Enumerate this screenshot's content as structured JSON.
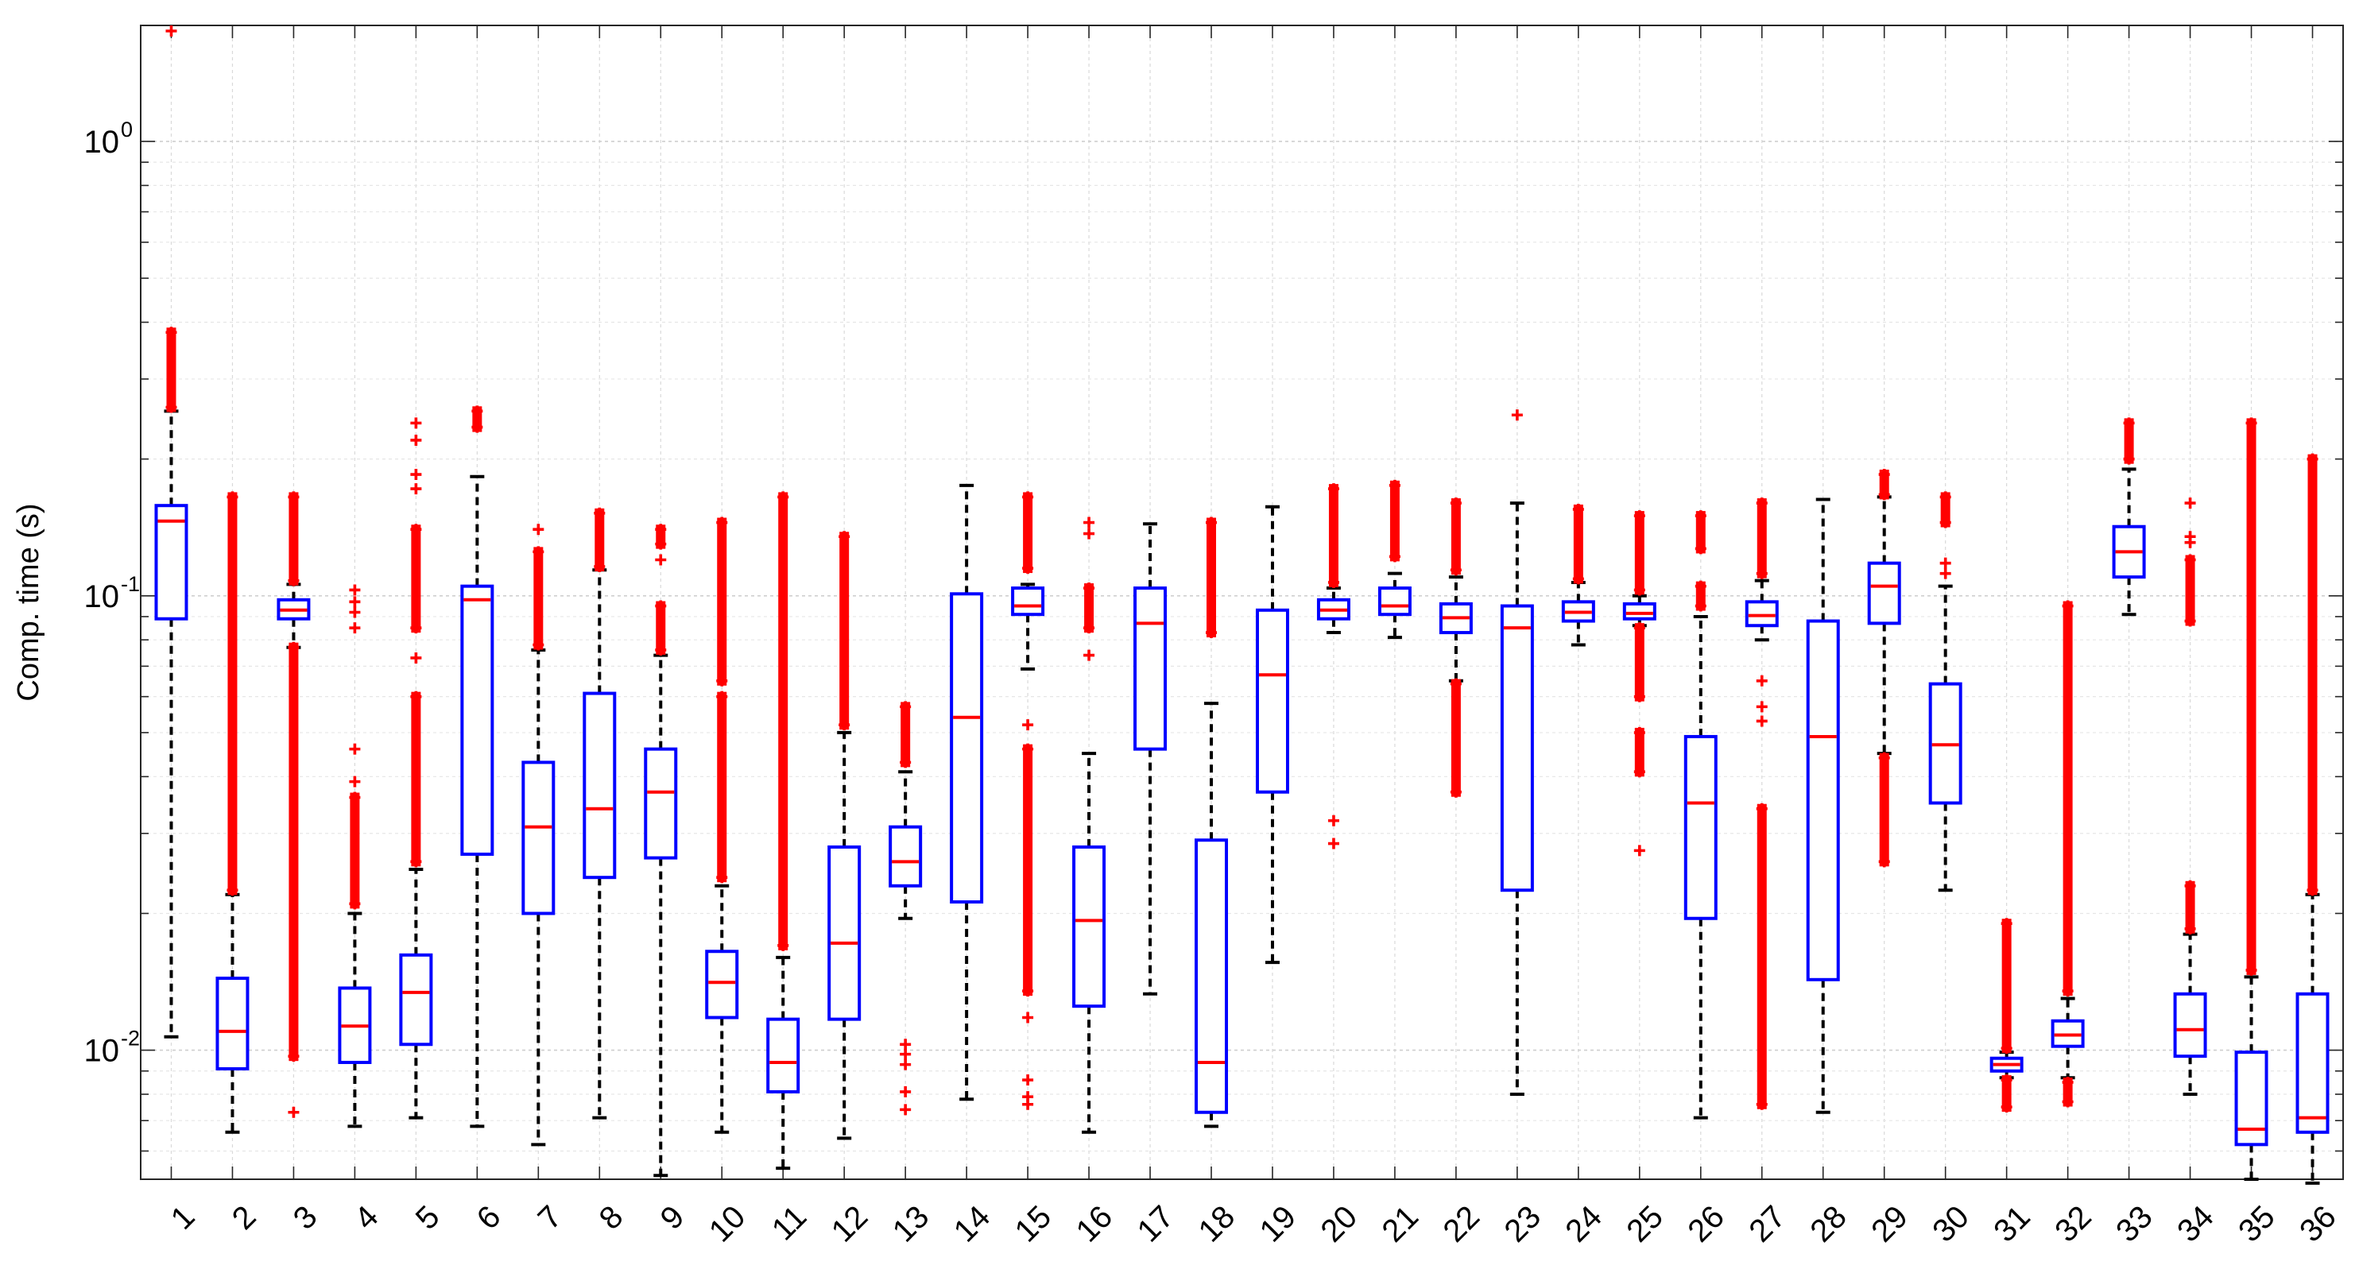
{
  "chart_data": {
    "type": "boxplot",
    "title": "",
    "xlabel": "",
    "ylabel": "Comp. time (s)",
    "yscale": "log",
    "ylim": [
      0.0052,
      1.8
    ],
    "grid": true,
    "legend": "none",
    "colors": {
      "box": "#0000ff",
      "median": "#ff0000",
      "whisker": "#000000",
      "outlier": "#ff0000",
      "grid": "#d9d9d9"
    },
    "ytick_labels": [
      {
        "base": "10",
        "exp": "0",
        "value": 1
      },
      {
        "base": "10",
        "exp": "-1",
        "value": 0.1
      },
      {
        "base": "10",
        "exp": "-2",
        "value": 0.01
      }
    ],
    "categories": [
      "1",
      "2",
      "3",
      "4",
      "5",
      "6",
      "7",
      "8",
      "9",
      "10",
      "11",
      "12",
      "13",
      "14",
      "15",
      "16",
      "17",
      "18",
      "19",
      "20",
      "21",
      "22",
      "23",
      "24",
      "25",
      "26",
      "27",
      "28",
      "29",
      "30",
      "31",
      "32",
      "33",
      "34",
      "35",
      "36"
    ],
    "boxes": [
      {
        "q1": 0.089,
        "median": 0.146,
        "q3": 0.158,
        "whisker_low": 0.0107,
        "whisker_high": 0.255,
        "outlier_ranges": [
          [
            0.26,
            0.38
          ]
        ],
        "outliers": [
          1.75
        ]
      },
      {
        "q1": 0.0091,
        "median": 0.011,
        "q3": 0.0144,
        "whisker_low": 0.0066,
        "whisker_high": 0.022,
        "outlier_ranges": [
          [
            0.0225,
            0.165
          ]
        ],
        "outliers": []
      },
      {
        "q1": 0.089,
        "median": 0.093,
        "q3": 0.098,
        "whisker_low": 0.077,
        "whisker_high": 0.106,
        "outlier_ranges": [
          [
            0.0097,
            0.077
          ],
          [
            0.108,
            0.165
          ]
        ],
        "outliers": [
          0.0073
        ]
      },
      {
        "q1": 0.0094,
        "median": 0.0113,
        "q3": 0.0137,
        "whisker_low": 0.0068,
        "whisker_high": 0.02,
        "outlier_ranges": [
          [
            0.021,
            0.036
          ]
        ],
        "outliers": [
          0.039,
          0.046,
          0.085,
          0.092,
          0.097,
          0.103
        ]
      },
      {
        "q1": 0.0103,
        "median": 0.0134,
        "q3": 0.0162,
        "whisker_low": 0.0071,
        "whisker_high": 0.025,
        "outlier_ranges": [
          [
            0.026,
            0.06
          ],
          [
            0.085,
            0.14
          ]
        ],
        "outliers": [
          0.073,
          0.172,
          0.185,
          0.22,
          0.24
        ]
      },
      {
        "q1": 0.027,
        "median": 0.098,
        "q3": 0.105,
        "whisker_low": 0.0068,
        "whisker_high": 0.183,
        "outlier_ranges": [
          [
            0.235,
            0.255
          ]
        ],
        "outliers": []
      },
      {
        "q1": 0.02,
        "median": 0.031,
        "q3": 0.043,
        "whisker_low": 0.0062,
        "whisker_high": 0.076,
        "outlier_ranges": [
          [
            0.078,
            0.125
          ]
        ],
        "outliers": [
          0.14
        ]
      },
      {
        "q1": 0.024,
        "median": 0.034,
        "q3": 0.061,
        "whisker_low": 0.0071,
        "whisker_high": 0.114,
        "outlier_ranges": [
          [
            0.116,
            0.152
          ]
        ],
        "outliers": []
      },
      {
        "q1": 0.0265,
        "median": 0.037,
        "q3": 0.046,
        "whisker_low": 0.0053,
        "whisker_high": 0.074,
        "outlier_ranges": [
          [
            0.076,
            0.095
          ],
          [
            0.13,
            0.14
          ]
        ],
        "outliers": [
          0.12
        ]
      },
      {
        "q1": 0.0118,
        "median": 0.0141,
        "q3": 0.0165,
        "whisker_low": 0.0066,
        "whisker_high": 0.023,
        "outlier_ranges": [
          [
            0.024,
            0.06
          ],
          [
            0.065,
            0.145
          ]
        ],
        "outliers": []
      },
      {
        "q1": 0.0081,
        "median": 0.0094,
        "q3": 0.0117,
        "whisker_low": 0.0055,
        "whisker_high": 0.016,
        "outlier_ranges": [
          [
            0.017,
            0.165
          ]
        ],
        "outliers": []
      },
      {
        "q1": 0.0117,
        "median": 0.0172,
        "q3": 0.028,
        "whisker_low": 0.0064,
        "whisker_high": 0.05,
        "outlier_ranges": [
          [
            0.052,
            0.135
          ]
        ],
        "outliers": []
      },
      {
        "q1": 0.023,
        "median": 0.026,
        "q3": 0.031,
        "whisker_low": 0.0195,
        "whisker_high": 0.041,
        "outlier_ranges": [
          [
            0.043,
            0.057
          ]
        ],
        "outliers": [
          0.0074,
          0.0081,
          0.0093,
          0.0098,
          0.0103
        ]
      },
      {
        "q1": 0.0212,
        "median": 0.054,
        "q3": 0.101,
        "whisker_low": 0.0078,
        "whisker_high": 0.175,
        "outlier_ranges": [],
        "outliers": []
      },
      {
        "q1": 0.091,
        "median": 0.095,
        "q3": 0.104,
        "whisker_low": 0.069,
        "whisker_high": 0.106,
        "outlier_ranges": [
          [
            0.0135,
            0.046
          ],
          [
            0.115,
            0.165
          ]
        ],
        "outliers": [
          0.0076,
          0.0079,
          0.0086,
          0.0118,
          0.052
        ]
      },
      {
        "q1": 0.0125,
        "median": 0.0193,
        "q3": 0.028,
        "whisker_low": 0.0066,
        "whisker_high": 0.045,
        "outlier_ranges": [
          [
            0.085,
            0.104
          ]
        ],
        "outliers": [
          0.074,
          0.137,
          0.145
        ]
      },
      {
        "q1": 0.046,
        "median": 0.087,
        "q3": 0.104,
        "whisker_low": 0.0133,
        "whisker_high": 0.144,
        "outlier_ranges": [],
        "outliers": []
      },
      {
        "q1": 0.0073,
        "median": 0.0094,
        "q3": 0.029,
        "whisker_low": 0.0068,
        "whisker_high": 0.058,
        "outlier_ranges": [
          [
            0.083,
            0.145
          ]
        ],
        "outliers": []
      },
      {
        "q1": 0.037,
        "median": 0.067,
        "q3": 0.093,
        "whisker_low": 0.0156,
        "whisker_high": 0.157,
        "outlier_ranges": [],
        "outliers": []
      },
      {
        "q1": 0.089,
        "median": 0.093,
        "q3": 0.098,
        "whisker_low": 0.083,
        "whisker_high": 0.104,
        "outlier_ranges": [
          [
            0.107,
            0.172
          ]
        ],
        "outliers": [
          0.0285,
          0.032
        ]
      },
      {
        "q1": 0.091,
        "median": 0.095,
        "q3": 0.104,
        "whisker_low": 0.081,
        "whisker_high": 0.112,
        "outlier_ranges": [
          [
            0.122,
            0.175
          ]
        ],
        "outliers": []
      },
      {
        "q1": 0.083,
        "median": 0.0895,
        "q3": 0.096,
        "whisker_low": 0.065,
        "whisker_high": 0.11,
        "outlier_ranges": [
          [
            0.037,
            0.064
          ],
          [
            0.114,
            0.16
          ]
        ],
        "outliers": []
      },
      {
        "q1": 0.0225,
        "median": 0.085,
        "q3": 0.095,
        "whisker_low": 0.008,
        "whisker_high": 0.16,
        "outlier_ranges": [],
        "outliers": [
          0.25
        ]
      },
      {
        "q1": 0.088,
        "median": 0.092,
        "q3": 0.097,
        "whisker_low": 0.078,
        "whisker_high": 0.107,
        "outlier_ranges": [
          [
            0.109,
            0.155
          ]
        ],
        "outliers": []
      },
      {
        "q1": 0.089,
        "median": 0.0915,
        "q3": 0.096,
        "whisker_low": 0.086,
        "whisker_high": 0.1,
        "outlier_ranges": [
          [
            0.041,
            0.05
          ],
          [
            0.06,
            0.085
          ],
          [
            0.103,
            0.15
          ]
        ],
        "outliers": [
          0.0275
        ]
      },
      {
        "q1": 0.0195,
        "median": 0.035,
        "q3": 0.049,
        "whisker_low": 0.0071,
        "whisker_high": 0.09,
        "outlier_ranges": [
          [
            0.095,
            0.105
          ],
          [
            0.127,
            0.15
          ]
        ],
        "outliers": []
      },
      {
        "q1": 0.086,
        "median": 0.0905,
        "q3": 0.097,
        "whisker_low": 0.08,
        "whisker_high": 0.108,
        "outlier_ranges": [
          [
            0.0076,
            0.034
          ],
          [
            0.112,
            0.16
          ]
        ],
        "outliers": [
          0.053,
          0.057,
          0.065
        ]
      },
      {
        "q1": 0.0143,
        "median": 0.049,
        "q3": 0.088,
        "whisker_low": 0.0073,
        "whisker_high": 0.163,
        "outlier_ranges": [],
        "outliers": []
      },
      {
        "q1": 0.087,
        "median": 0.105,
        "q3": 0.118,
        "whisker_low": 0.045,
        "whisker_high": 0.165,
        "outlier_ranges": [
          [
            0.026,
            0.044
          ],
          [
            0.167,
            0.185
          ]
        ],
        "outliers": []
      },
      {
        "q1": 0.035,
        "median": 0.047,
        "q3": 0.064,
        "whisker_low": 0.0225,
        "whisker_high": 0.105,
        "outlier_ranges": [
          [
            0.145,
            0.165
          ]
        ],
        "outliers": [
          0.112,
          0.118
        ]
      },
      {
        "q1": 0.009,
        "median": 0.0093,
        "q3": 0.0096,
        "whisker_low": 0.0087,
        "whisker_high": 0.0099,
        "outlier_ranges": [
          [
            0.0075,
            0.0086
          ],
          [
            0.0101,
            0.019
          ]
        ],
        "outliers": []
      },
      {
        "q1": 0.0102,
        "median": 0.0108,
        "q3": 0.0116,
        "whisker_low": 0.0087,
        "whisker_high": 0.013,
        "outlier_ranges": [
          [
            0.0077,
            0.0085
          ],
          [
            0.0135,
            0.095
          ]
        ],
        "outliers": []
      },
      {
        "q1": 0.11,
        "median": 0.125,
        "q3": 0.142,
        "whisker_low": 0.091,
        "whisker_high": 0.19,
        "outlier_ranges": [
          [
            0.2,
            0.24
          ]
        ],
        "outliers": []
      },
      {
        "q1": 0.0097,
        "median": 0.0111,
        "q3": 0.0133,
        "whisker_low": 0.008,
        "whisker_high": 0.018,
        "outlier_ranges": [
          [
            0.0185,
            0.023
          ],
          [
            0.088,
            0.12
          ]
        ],
        "outliers": [
          0.131,
          0.135,
          0.16
        ]
      },
      {
        "q1": 0.0062,
        "median": 0.0067,
        "q3": 0.0099,
        "whisker_low": 0.0052,
        "whisker_high": 0.0145,
        "outlier_ranges": [
          [
            0.015,
            0.24
          ]
        ],
        "outliers": []
      },
      {
        "q1": 0.0066,
        "median": 0.0071,
        "q3": 0.0133,
        "whisker_low": 0.0051,
        "whisker_high": 0.022,
        "outlier_ranges": [
          [
            0.0225,
            0.2
          ]
        ],
        "outliers": []
      }
    ]
  }
}
